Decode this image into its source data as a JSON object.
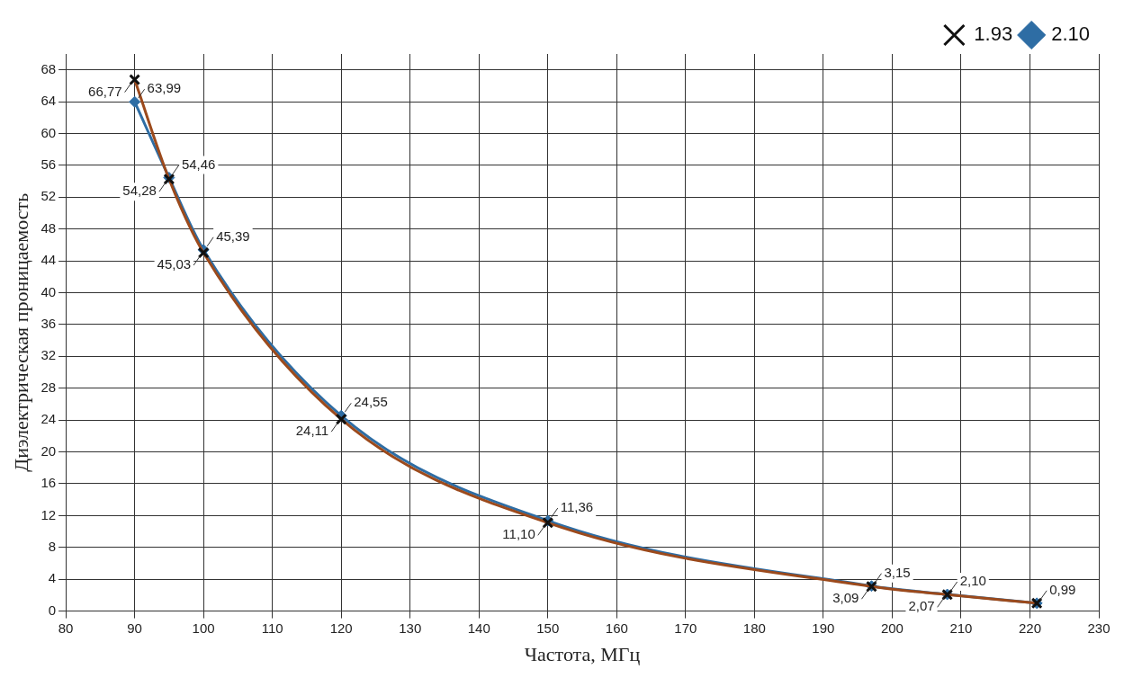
{
  "chart_data": {
    "type": "line",
    "xlabel": "Частота, МГц",
    "ylabel": "Диэлектрическая проницаемость",
    "x": [
      90,
      95,
      100,
      120,
      150,
      197,
      208,
      221
    ],
    "xlim": [
      80,
      230
    ],
    "xticks": [
      80,
      90,
      100,
      110,
      120,
      130,
      140,
      150,
      160,
      170,
      180,
      190,
      200,
      210,
      220,
      230
    ],
    "ylim": [
      0,
      70
    ],
    "yticks": [
      0,
      4,
      8,
      12,
      16,
      20,
      24,
      28,
      32,
      36,
      40,
      44,
      48,
      52,
      56,
      60,
      64,
      68
    ],
    "grid": true,
    "legend": "top right",
    "series": [
      {
        "name": "1.93",
        "color": "#9c4a1c",
        "marker": "cross",
        "values": [
          66.77,
          54.28,
          45.03,
          24.11,
          11.1,
          3.09,
          2.07,
          0.99
        ],
        "value_labels": [
          "66,77",
          "54,28",
          "45,03",
          "24,11",
          "11,10",
          "3,09",
          "2,07",
          null
        ]
      },
      {
        "name": "2.10",
        "color": "#2e6da4",
        "marker": "diamond",
        "values": [
          63.99,
          54.46,
          45.39,
          24.55,
          11.36,
          3.15,
          2.1,
          0.99
        ],
        "value_labels": [
          "63,99",
          "54,46",
          "45,39",
          "24,55",
          "11,36",
          "3,15",
          "2,10",
          "0,99"
        ]
      }
    ]
  }
}
